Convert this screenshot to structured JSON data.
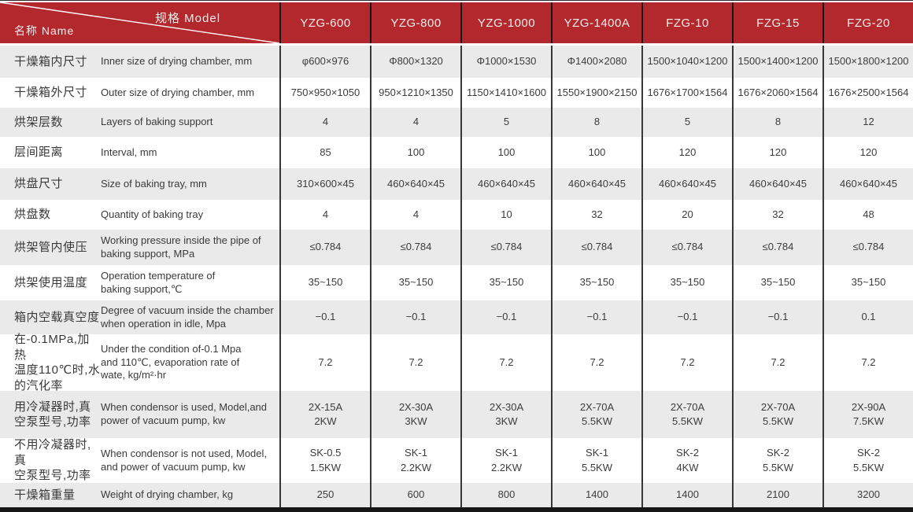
{
  "header": {
    "corner": {
      "model_label": "规格 Model",
      "name_label": "名称 Name"
    },
    "models": [
      "YZG-600",
      "YZG-800",
      "YZG-1000",
      "YZG-1400A",
      "FZG-10",
      "FZG-15",
      "FZG-20"
    ]
  },
  "rows": [
    {
      "zh": "干燥箱内尺寸",
      "en": "Inner size of drying chamber, mm",
      "values": [
        "φ600×976",
        "Φ800×1320",
        "Φ1000×1530",
        "Φ1400×2080",
        "1500×1040×1200",
        "1500×1400×1200",
        "1500×1800×1200"
      ]
    },
    {
      "zh": "干燥箱外尺寸",
      "en": "Outer size of drying chamber, mm",
      "values": [
        "750×950×1050",
        "950×1210×1350",
        "1150×1410×1600",
        "1550×1900×2150",
        "1676×1700×1564",
        "1676×2060×1564",
        "1676×2500×1564"
      ]
    },
    {
      "zh": "烘架层数",
      "en": "Layers of baking support",
      "values": [
        "4",
        "4",
        "5",
        "8",
        "5",
        "8",
        "12"
      ]
    },
    {
      "zh": "层间距离",
      "en": "Interval, mm",
      "values": [
        "85",
        "100",
        "100",
        "100",
        "120",
        "120",
        "120"
      ]
    },
    {
      "zh": "烘盘尺寸",
      "en": "Size of baking tray, mm",
      "values": [
        "310×600×45",
        "460×640×45",
        "460×640×45",
        "460×640×45",
        "460×640×45",
        "460×640×45",
        "460×640×45"
      ]
    },
    {
      "zh": "烘盘数",
      "en": "Quantity of baking tray",
      "values": [
        "4",
        "4",
        "10",
        "32",
        "20",
        "32",
        "48"
      ]
    },
    {
      "zh": "烘架管内使压",
      "en": "Working pressure inside the pipe of\nbaking support, MPa",
      "values": [
        "≤0.784",
        "≤0.784",
        "≤0.784",
        "≤0.784",
        "≤0.784",
        "≤0.784",
        "≤0.784"
      ]
    },
    {
      "zh": "烘架使用温度",
      "en": "Operation temperature of\nbaking support,℃",
      "values": [
        "35~150",
        "35~150",
        "35~150",
        "35~150",
        "35~150",
        "35~150",
        "35~150"
      ]
    },
    {
      "zh": "箱内空载真空度",
      "en": "Degree of vacuum inside the chamber\nwhen operation in idle, Mpa",
      "values": [
        "−0.1",
        "−0.1",
        "−0.1",
        "−0.1",
        "−0.1",
        "−0.1",
        "0.1"
      ]
    },
    {
      "zh": "在-0.1MPa,加热\n温度110℃时,水\n的汽化率",
      "en": "Under the condition of-0.1 Mpa\nand 110℃, evaporation rate of\nwate, kg/m²·hr",
      "values": [
        "7.2",
        "7.2",
        "7.2",
        "7.2",
        "7.2",
        "7.2",
        "7.2"
      ]
    },
    {
      "zh": "用冷凝器时,真\n空泵型号,功率",
      "en": "When condensor is used, Model,and\npower of vacuum pump, kw",
      "values": [
        "2X-15A\n2KW",
        "2X-30A\n3KW",
        "2X-30A\n3KW",
        "2X-70A\n5.5KW",
        "2X-70A\n5.5KW",
        "2X-70A\n5.5KW",
        "2X-90A\n7.5KW"
      ]
    },
    {
      "zh": "不用冷凝器时,真\n空泵型号,功率",
      "en": "When condensor is not used, Model,\nand power of vacuum pump, kw",
      "values": [
        "SK-0.5\n1.5KW",
        "SK-1\n2.2KW",
        "SK-1\n2.2KW",
        "SK-1\n5.5KW",
        "SK-2\n4KW",
        "SK-2\n5.5KW",
        "SK-2\n5.5KW"
      ]
    },
    {
      "zh": "干燥箱重量",
      "en": "Weight of drying chamber, kg",
      "values": [
        "250",
        "600",
        "800",
        "1400",
        "1400",
        "2100",
        "3200"
      ]
    }
  ],
  "colors": {
    "header_red": "#b3282d",
    "row_alt_gray": "#eaeaea",
    "separator_dark": "#373737",
    "header_text": "#f6ecec",
    "body_text": "#3c3c3c"
  }
}
